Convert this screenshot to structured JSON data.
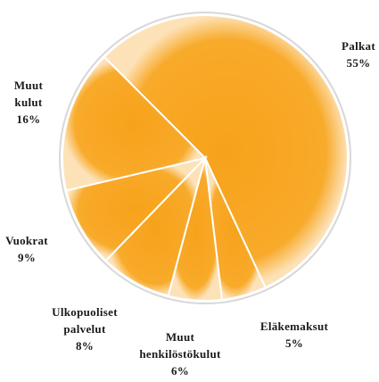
{
  "chart_data": {
    "type": "pie",
    "categories": [
      "Palkat",
      "Eläkemaksut",
      "Muut henkilöstökulut",
      "Ulkopuoliset palvelut",
      "Vuokrat",
      "Muut kulut"
    ],
    "values": [
      55,
      5,
      6,
      8,
      9,
      16
    ],
    "value_labels": [
      "55%",
      "5%",
      "6%",
      "8%",
      "9%",
      "16%"
    ],
    "color": "#f7a21b"
  }
}
